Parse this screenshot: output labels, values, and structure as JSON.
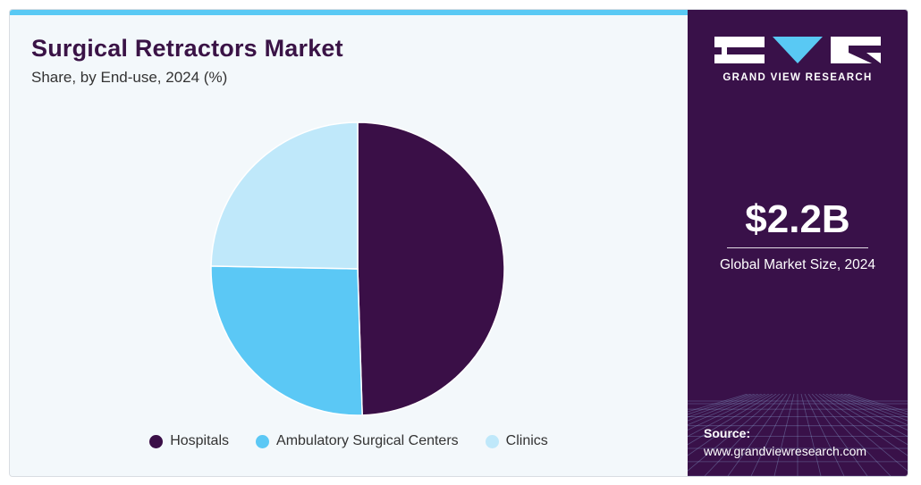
{
  "header": {
    "title": "Surgical Retractors Market",
    "subtitle": "Share, by End-use, 2024 (%)"
  },
  "chart_data": {
    "type": "pie",
    "title": "Surgical Retractors Market",
    "subtitle": "Share, by End-use, 2024 (%)",
    "categories": [
      "Hospitals",
      "Ambulatory Surgical Centers",
      "Clinics"
    ],
    "values": [
      49.5,
      25.8,
      24.7
    ],
    "colors": [
      "#3a0f47",
      "#5bc8f5",
      "#bfe8fa"
    ],
    "start_angle_deg": 0,
    "direction": "clockwise",
    "legend_position": "bottom"
  },
  "side_panel": {
    "brand_name": "GRAND VIEW RESEARCH",
    "logo_icon": "grand-view-research-logo",
    "market_value": "$2.2B",
    "market_value_label": "Global Market Size, 2024",
    "source_label": "Source:",
    "source_url": "www.grandviewresearch.com",
    "background_color": "#391149",
    "accent_color": "#59c9f4"
  }
}
